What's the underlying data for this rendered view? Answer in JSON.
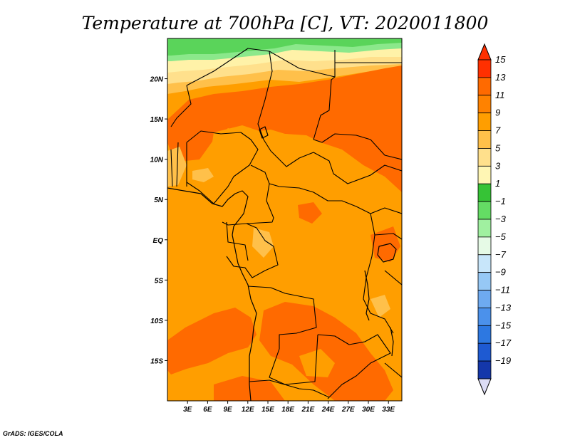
{
  "title": "Temperature at 700hPa [C], VT: 2020011800",
  "credit": "GrADS: IGES/COLA",
  "map": {
    "lat_ticks": [
      "20N",
      "15N",
      "10N",
      "5N",
      "EQ",
      "5S",
      "10S",
      "15S"
    ],
    "lon_ticks": [
      "3E",
      "6E",
      "9E",
      "12E",
      "15E",
      "18E",
      "21E",
      "24E",
      "27E",
      "30E",
      "33E"
    ],
    "lat_tick_values": [
      20,
      15,
      10,
      5,
      0,
      -5,
      -10,
      -15
    ],
    "lon_tick_values": [
      3,
      6,
      9,
      12,
      15,
      18,
      21,
      24,
      27,
      30,
      33
    ],
    "lat_range": [
      -20,
      25
    ],
    "lon_range": [
      0,
      35
    ],
    "field_colors": {
      "green": "#5ad45a",
      "light_green": "#8be88b",
      "pale_yellow": "#fff2a8",
      "light_yellow": "#ffe08c",
      "light_orange": "#ffc04a",
      "orange": "#ff9e00",
      "dark_orange": "#ff6a00"
    }
  },
  "colorbar": {
    "levels": [
      {
        "label": "15",
        "color": "#ff3000"
      },
      {
        "label": "13",
        "color": "#ff6a00"
      },
      {
        "label": "11",
        "color": "#ff8200"
      },
      {
        "label": "9",
        "color": "#ff9e00"
      },
      {
        "label": "7",
        "color": "#ffc04a"
      },
      {
        "label": "5",
        "color": "#ffe08c"
      },
      {
        "label": "3",
        "color": "#fff6b4"
      },
      {
        "label": "1",
        "color": "#36c336"
      },
      {
        "label": "−1",
        "color": "#64dc64"
      },
      {
        "label": "−3",
        "color": "#a0f0a0"
      },
      {
        "label": "−5",
        "color": "#e6fae6"
      },
      {
        "label": "−7",
        "color": "#c8e6fa"
      },
      {
        "label": "−9",
        "color": "#96c8f5"
      },
      {
        "label": "−11",
        "color": "#6eaaf0"
      },
      {
        "label": "−13",
        "color": "#4b91eb"
      },
      {
        "label": "−15",
        "color": "#2d78e1"
      },
      {
        "label": "−17",
        "color": "#1e5ad2"
      },
      {
        "label": "−19",
        "color": "#1437aa"
      }
    ],
    "bottom_color": "#0a0a78",
    "top_color": "#ff3000",
    "bottom_arrow_color": "#dcdcf5"
  }
}
